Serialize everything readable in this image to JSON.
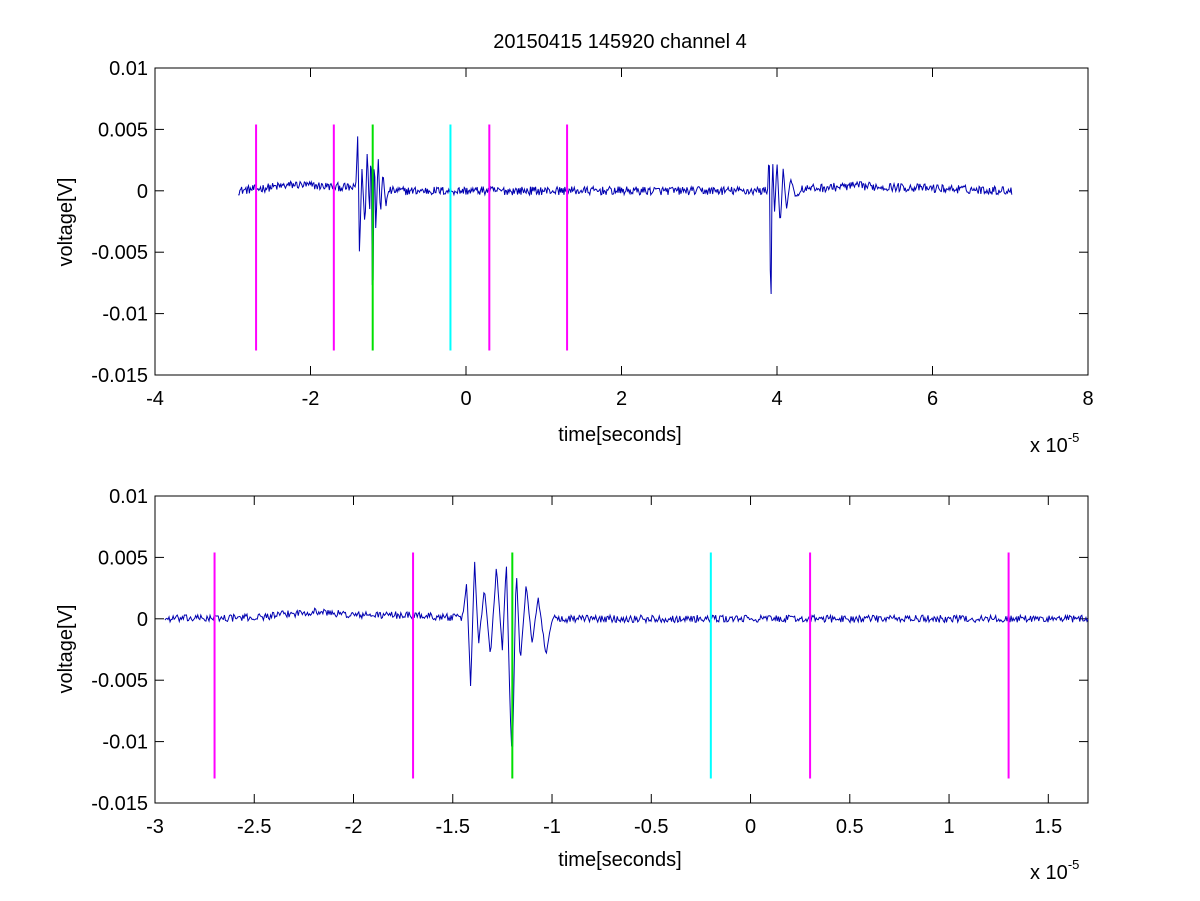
{
  "figure_title": "20150415 145920 channel 4",
  "chart_data": [
    {
      "type": "line",
      "xlabel": "time[seconds]",
      "ylabel": "voltage[V]",
      "x_multiplier": "x 10",
      "x_exponent": "-5",
      "xlim": [
        -4,
        8
      ],
      "ylim": [
        -0.015,
        0.01
      ],
      "xticks": [
        -4,
        -2,
        0,
        2,
        4,
        6,
        8
      ],
      "xtick_labels": [
        "-4",
        "-2",
        "0",
        "2",
        "4",
        "6",
        "8"
      ],
      "yticks": [
        0.01,
        0.005,
        0,
        -0.005,
        -0.01,
        -0.015
      ],
      "ytick_labels": [
        "0.01",
        "0.005",
        "0",
        "-0.005",
        "-0.01",
        "-0.015"
      ],
      "series": [
        {
          "color": "#0000b0",
          "x_range": [
            -2.93,
            7.02
          ],
          "baseline": [
            [
              -2.93,
              0.0
            ],
            [
              -2.2,
              0.0005
            ],
            [
              -1.6,
              0.0003
            ],
            [
              -1.4,
              0.0002
            ],
            [
              -1.0,
              0.0
            ],
            [
              0.0,
              0.0
            ],
            [
              1.0,
              0.0
            ],
            [
              2.0,
              0.0
            ],
            [
              3.0,
              0.0
            ],
            [
              3.8,
              0.0
            ],
            [
              4.5,
              0.0002
            ],
            [
              5.0,
              0.0004
            ],
            [
              5.5,
              0.0003
            ],
            [
              6.0,
              0.0002
            ],
            [
              6.5,
              0.0001
            ],
            [
              7.02,
              0.0
            ]
          ],
          "bursts": [
            {
              "x": [
                -1.42,
                -1.0
              ],
              "points": [
                [
                  -1.42,
                  0.0
                ],
                [
                  -1.39,
                  0.0048
                ],
                [
                  -1.37,
                  -0.0056
                ],
                [
                  -1.34,
                  0.002
                ],
                [
                  -1.3,
                  -0.003
                ],
                [
                  -1.27,
                  0.0035
                ],
                [
                  -1.24,
                  -0.002
                ],
                [
                  -1.22,
                  0.0046
                ],
                [
                  -1.2,
                  -0.0119
                ],
                [
                  -1.18,
                  0.0043
                ],
                [
                  -1.16,
                  -0.0035
                ],
                [
                  -1.13,
                  0.003
                ],
                [
                  -1.1,
                  -0.002
                ],
                [
                  -1.07,
                  0.0015
                ],
                [
                  -1.03,
                  -0.0012
                ],
                [
                  -1.0,
                  0.0
                ]
              ]
            },
            {
              "x": [
                3.88,
                4.3
              ],
              "points": [
                [
                  3.88,
                  0.0
                ],
                [
                  3.9,
                  0.0038
                ],
                [
                  3.92,
                  -0.0115
                ],
                [
                  3.94,
                  0.0032
                ],
                [
                  3.97,
                  -0.002
                ],
                [
                  4.0,
                  0.0025
                ],
                [
                  4.04,
                  -0.003
                ],
                [
                  4.08,
                  0.0018
                ],
                [
                  4.12,
                  -0.0015
                ],
                [
                  4.18,
                  0.001
                ],
                [
                  4.24,
                  -0.0006
                ],
                [
                  4.3,
                  0.0
                ]
              ]
            }
          ],
          "noise_amplitude": 0.00035
        }
      ],
      "markers": [
        {
          "x": -2.7,
          "color": "#ff00ff",
          "y_range": [
            -0.013,
            0.0054
          ]
        },
        {
          "x": -1.7,
          "color": "#ff00ff",
          "y_range": [
            -0.013,
            0.0054
          ]
        },
        {
          "x": -1.2,
          "color": "#00e000",
          "y_range": [
            -0.013,
            0.0054
          ]
        },
        {
          "x": -0.2,
          "color": "#00ffff",
          "y_range": [
            -0.013,
            0.0054
          ]
        },
        {
          "x": 0.3,
          "color": "#ff00ff",
          "y_range": [
            -0.013,
            0.0054
          ]
        },
        {
          "x": 1.3,
          "color": "#ff00ff",
          "y_range": [
            -0.013,
            0.0054
          ]
        }
      ]
    },
    {
      "type": "line",
      "xlabel": "time[seconds]",
      "ylabel": "voltage[V]",
      "x_multiplier": "x 10",
      "x_exponent": "-5",
      "xlim": [
        -3.0,
        1.7
      ],
      "ylim": [
        -0.015,
        0.01
      ],
      "xticks": [
        -3,
        -2.5,
        -2,
        -1.5,
        -1,
        -0.5,
        0,
        0.5,
        1,
        1.5
      ],
      "xtick_labels": [
        "-3",
        "-2.5",
        "-2",
        "-1.5",
        "-1",
        "-0.5",
        "0",
        "0.5",
        "1",
        "1.5"
      ],
      "yticks": [
        0.01,
        0.005,
        0,
        -0.005,
        -0.01,
        -0.015
      ],
      "ytick_labels": [
        "0.01",
        "0.005",
        "0",
        "-0.005",
        "-0.01",
        "-0.015"
      ],
      "series": [
        {
          "color": "#0000b0",
          "x_range": [
            -2.95,
            1.7
          ],
          "baseline": [
            [
              -2.95,
              0.0
            ],
            [
              -2.5,
              0.0001
            ],
            [
              -2.2,
              0.0006
            ],
            [
              -2.0,
              0.0003
            ],
            [
              -1.7,
              0.0003
            ],
            [
              -1.5,
              0.0001
            ],
            [
              -1.0,
              0.0
            ],
            [
              0.0,
              0.0
            ],
            [
              0.5,
              0.0
            ],
            [
              1.0,
              0.0
            ],
            [
              1.7,
              0.0
            ]
          ],
          "bursts": [
            {
              "x": [
                -1.45,
                -1.0
              ],
              "points": [
                [
                  -1.45,
                  0.0
                ],
                [
                  -1.43,
                  0.003
                ],
                [
                  -1.41,
                  -0.0055
                ],
                [
                  -1.39,
                  0.0047
                ],
                [
                  -1.37,
                  -0.002
                ],
                [
                  -1.34,
                  0.0025
                ],
                [
                  -1.31,
                  -0.003
                ],
                [
                  -1.28,
                  0.0042
                ],
                [
                  -1.25,
                  -0.0025
                ],
                [
                  -1.23,
                  0.0046
                ],
                [
                  -1.21,
                  -0.008
                ],
                [
                  -1.2,
                  -0.0117
                ],
                [
                  -1.18,
                  0.0043
                ],
                [
                  -1.16,
                  -0.0035
                ],
                [
                  -1.13,
                  0.0028
                ],
                [
                  -1.1,
                  -0.002
                ],
                [
                  -1.07,
                  0.0018
                ],
                [
                  -1.03,
                  -0.003
                ],
                [
                  -1.0,
                  0.0
                ]
              ]
            }
          ],
          "noise_amplitude": 0.0003
        }
      ],
      "markers": [
        {
          "x": -2.7,
          "color": "#ff00ff",
          "y_range": [
            -0.013,
            0.0054
          ]
        },
        {
          "x": -1.7,
          "color": "#ff00ff",
          "y_range": [
            -0.013,
            0.0054
          ]
        },
        {
          "x": -1.2,
          "color": "#00e000",
          "y_range": [
            -0.013,
            0.0054
          ]
        },
        {
          "x": -0.2,
          "color": "#00ffff",
          "y_range": [
            -0.013,
            0.0054
          ]
        },
        {
          "x": 0.3,
          "color": "#ff00ff",
          "y_range": [
            -0.013,
            0.0054
          ]
        },
        {
          "x": 1.3,
          "color": "#ff00ff",
          "y_range": [
            -0.013,
            0.0054
          ]
        }
      ]
    }
  ]
}
